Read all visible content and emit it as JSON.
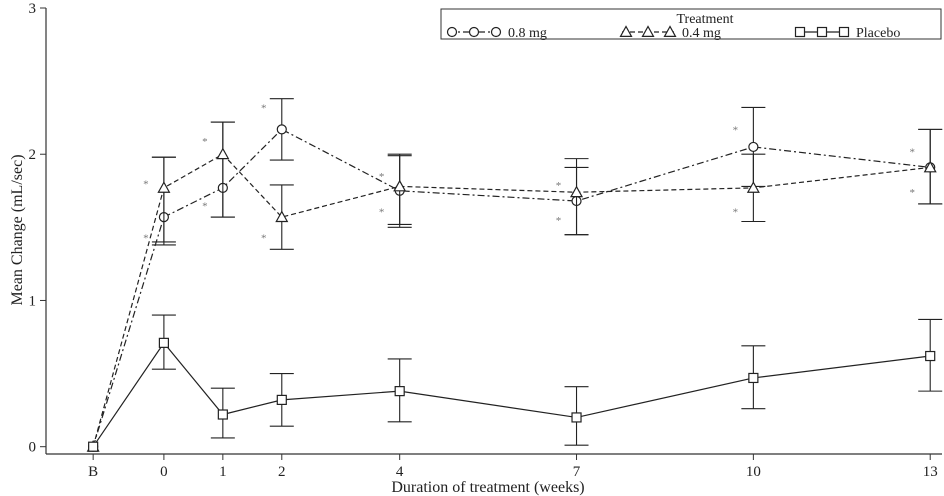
{
  "chart_data": {
    "type": "line",
    "title": "",
    "xlabel": "Duration of treatment (weeks)",
    "ylabel": "Mean Change (mL/sec)",
    "x_categories": [
      "B",
      "0",
      "1",
      "2",
      "4",
      "7",
      "10",
      "13"
    ],
    "x_values": [
      -1.2,
      0,
      1,
      2,
      4,
      7,
      10,
      13
    ],
    "xlim": [
      -2,
      13.2
    ],
    "ylim": [
      -0.05,
      3
    ],
    "y_ticks": [
      "0",
      "1",
      "2",
      "3"
    ],
    "y_tick_values": [
      0,
      1,
      2,
      3
    ],
    "legend": {
      "title": "Treatment",
      "placement": "top-right"
    },
    "significance_symbol": "*",
    "series": [
      {
        "name": "0.8 mg",
        "marker": "circle",
        "line": "dash-dot",
        "values": [
          0,
          1.57,
          1.77,
          2.17,
          1.75,
          1.68,
          2.05,
          1.91
        ],
        "error_upper": [
          0,
          1.98,
          2.22,
          2.38,
          2.0,
          1.97,
          2.32,
          2.17
        ],
        "error_lower": [
          0,
          1.38,
          1.57,
          1.96,
          1.5,
          1.45,
          1.78,
          1.66
        ]
      },
      {
        "name": "0.4 mg",
        "marker": "triangle",
        "line": "dashed",
        "values": [
          0,
          1.77,
          2.0,
          1.57,
          1.78,
          1.74,
          1.77,
          1.91
        ],
        "error_upper": [
          0,
          1.98,
          2.22,
          1.79,
          1.99,
          1.91,
          2.0,
          2.17
        ],
        "error_lower": [
          0,
          1.4,
          1.57,
          1.35,
          1.52,
          1.45,
          1.54,
          1.66
        ]
      },
      {
        "name": "Placebo",
        "marker": "square",
        "line": "solid",
        "values": [
          0,
          0.71,
          0.22,
          0.32,
          0.38,
          0.2,
          0.47,
          0.62
        ],
        "error_upper": [
          0,
          0.9,
          0.4,
          0.5,
          0.6,
          0.41,
          0.69,
          0.87
        ],
        "error_lower": [
          0,
          0.53,
          0.06,
          0.14,
          0.17,
          0.01,
          0.26,
          0.38
        ]
      }
    ],
    "annotations": [
      {
        "x": 0,
        "y": 1.8,
        "text": "*"
      },
      {
        "x": 0,
        "y": 1.43,
        "text": "*"
      },
      {
        "x": 1,
        "y": 2.09,
        "text": "*"
      },
      {
        "x": 1,
        "y": 1.65,
        "text": "*"
      },
      {
        "x": 2,
        "y": 2.32,
        "text": "*"
      },
      {
        "x": 2,
        "y": 1.43,
        "text": "*"
      },
      {
        "x": 4,
        "y": 1.85,
        "text": "*"
      },
      {
        "x": 4,
        "y": 1.61,
        "text": "*"
      },
      {
        "x": 7,
        "y": 1.79,
        "text": "*"
      },
      {
        "x": 7,
        "y": 1.55,
        "text": "*"
      },
      {
        "x": 10,
        "y": 2.17,
        "text": "*"
      },
      {
        "x": 10,
        "y": 1.61,
        "text": "*"
      },
      {
        "x": 13,
        "y": 2.02,
        "text": "*"
      },
      {
        "x": 13,
        "y": 1.74,
        "text": "*"
      }
    ],
    "grid": false
  }
}
